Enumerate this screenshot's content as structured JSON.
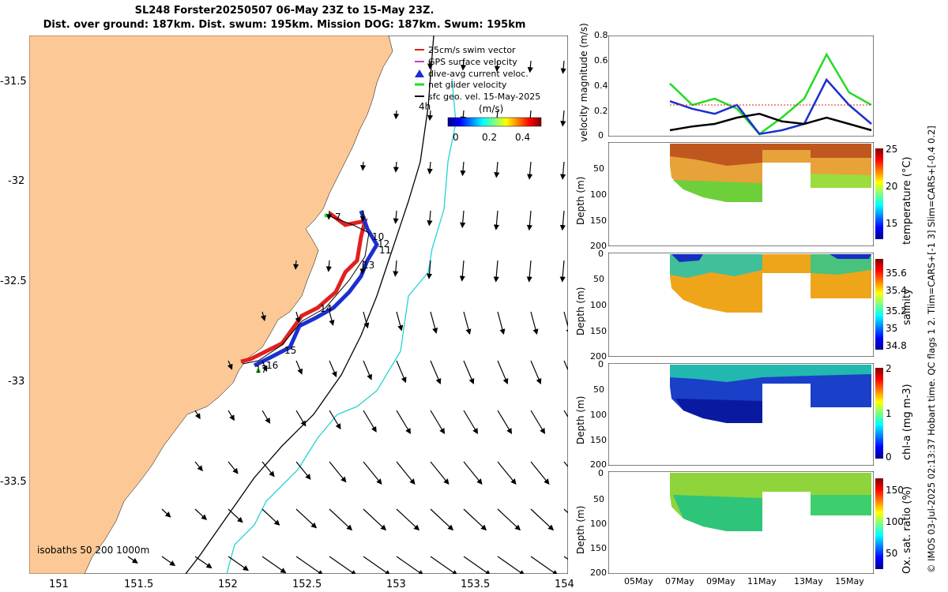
{
  "header": {
    "line1": "SL248 Forster20250507 06-May 23Z to 15-May 23Z.",
    "line2": "Dist. over ground: 187km. Dist. swum: 195km. Mission DOG: 187km. Swum: 195km"
  },
  "map": {
    "lon_ticks": [
      "151",
      "151.5",
      "152",
      "152.5",
      "153",
      "153.5",
      "154"
    ],
    "lat_ticks": [
      "-31.5",
      "-32",
      "-32.5",
      "-33",
      "-33.5"
    ],
    "legend": [
      {
        "label": "25cm/s swim vector",
        "color": "#e02020"
      },
      {
        "label": "GPS surface velocity",
        "color": "#c040c0"
      },
      {
        "label": "dive-avg current veloc.",
        "color": "#1a2fd0"
      },
      {
        "label": "net glider velocity",
        "color": "#22dd22"
      },
      {
        "label": "sfc geo. vel. 15-May-2025",
        "color": "#000000"
      }
    ],
    "colorbar": {
      "unit": "(m/s)",
      "ticks": [
        "0",
        "0.2",
        "0.4"
      ]
    },
    "time_label": "4h",
    "isobath_label": "isobaths 50  200  1000m",
    "track_labels": [
      "7",
      "10",
      "12",
      "11",
      "13",
      "14",
      "15",
      "16",
      "17"
    ],
    "colors": {
      "land": "#fcc996",
      "sea": "#ffffff",
      "isobath_1000": "#000000",
      "current": "#22d3d3"
    }
  },
  "velocity_panel": {
    "ylabel": "velocity magnitude (m/s)",
    "yticks": [
      "0",
      "0.2",
      "0.4",
      "0.6",
      "0.8"
    ]
  },
  "profile_panels": [
    {
      "label": "temperature (°C)",
      "cbar_ticks": [
        "25",
        "20",
        "15"
      ],
      "depth_ticks": [
        "50",
        "100",
        "150",
        "200"
      ]
    },
    {
      "label": "salinity",
      "cbar_ticks": [
        "35.6",
        "35.4",
        "35.2",
        "35",
        "34.8"
      ],
      "depth_ticks": [
        "0",
        "50",
        "100",
        "150",
        "200"
      ]
    },
    {
      "label": "chl-a (mg m-3)",
      "cbar_ticks": [
        "2",
        "1",
        "0"
      ],
      "depth_ticks": [
        "0",
        "50",
        "100",
        "150",
        "200"
      ]
    },
    {
      "label": "Ox. sat. ratio (%)",
      "cbar_ticks": [
        "150",
        "100",
        "50"
      ],
      "depth_ticks": [
        "0",
        "50",
        "100",
        "150",
        "200"
      ]
    }
  ],
  "depth_label": "Depth (m)",
  "time_axis": [
    "05May",
    "07May",
    "09May",
    "11May",
    "13May",
    "15May"
  ],
  "side_note": "© IMOS 03-Jul-2025 02:13:37 Hobart time. QC flags 1  2. Tlim=CARS+[-1 3] Slim=CARS+[-0.4 0.2]",
  "chart_data": [
    {
      "type": "line",
      "title": "velocity magnitude (m/s)",
      "x": [
        "07May",
        "08May",
        "09May",
        "10May",
        "11May",
        "12May",
        "13May",
        "14May",
        "15May",
        "16May"
      ],
      "series": [
        {
          "name": "net glider velocity",
          "color": "#22dd22",
          "values": [
            0.42,
            0.25,
            0.3,
            0.22,
            0.02,
            0.15,
            0.3,
            0.65,
            0.35,
            0.25
          ]
        },
        {
          "name": "dive-avg current veloc.",
          "color": "#1a2fd0",
          "values": [
            0.28,
            0.22,
            0.18,
            0.25,
            0.02,
            0.05,
            0.1,
            0.45,
            0.25,
            0.1
          ]
        },
        {
          "name": "25cm/s swim vector",
          "color": "#e02020",
          "values": [
            0.25,
            0.25,
            0.25,
            0.25,
            0.25,
            0.25,
            0.25,
            0.25,
            0.25,
            0.25
          ]
        },
        {
          "name": "sfc geo. vel.",
          "color": "#000000",
          "values": [
            0.05,
            0.08,
            0.1,
            0.15,
            0.18,
            0.12,
            0.1,
            0.15,
            0.1,
            0.05
          ]
        }
      ],
      "ylim": [
        0,
        0.8
      ]
    },
    {
      "type": "heatmap",
      "title": "temperature (°C)",
      "x": [
        "07May",
        "15May"
      ],
      "ylim": [
        0,
        200
      ],
      "clim": [
        12,
        25
      ]
    },
    {
      "type": "heatmap",
      "title": "salinity",
      "x": [
        "07May",
        "15May"
      ],
      "ylim": [
        0,
        200
      ],
      "clim": [
        34.7,
        35.7
      ]
    },
    {
      "type": "heatmap",
      "title": "chl-a (mg m-3)",
      "x": [
        "07May",
        "15May"
      ],
      "ylim": [
        0,
        200
      ],
      "clim": [
        0,
        2
      ]
    },
    {
      "type": "heatmap",
      "title": "Ox. sat. ratio (%)",
      "x": [
        "07May",
        "15May"
      ],
      "ylim": [
        0,
        200
      ],
      "clim": [
        20,
        175
      ]
    }
  ]
}
